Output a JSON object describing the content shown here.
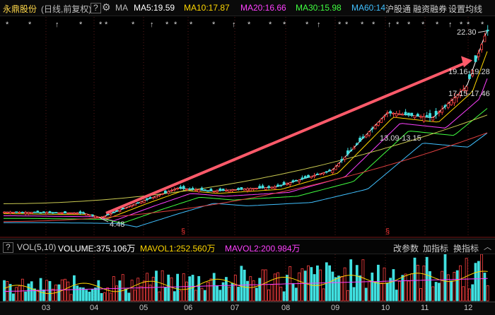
{
  "header": {
    "stock_name": "永鼎股份",
    "period": "(日线,前复权)",
    "help": "?",
    "gear": "gear-icon",
    "ma_label": "MA",
    "ma5": "MA5:19.59",
    "ma10": "MA10:17.87",
    "ma20": "MA20:16.66",
    "ma30": "MA30:15.98",
    "ma60": "MA60:14",
    "hgt": "沪股通",
    "margin": "融资融券",
    "settings": "设置均线",
    "colors": {
      "ma5": "#ffffff",
      "ma10": "#ffd700",
      "ma20": "#ff40ff",
      "ma30": "#40ff40",
      "ma60": "#40c0ff"
    }
  },
  "volume_header": {
    "help": "?",
    "title": "VOL(5,10)",
    "volume": "VOLUME:375.106万",
    "mavol1": "MAVOL1:252.560万",
    "mavol2": "MAVOL2:200.984万",
    "change_params": "改参数",
    "add_indicator": "加指标",
    "switch_indicator": "换指标"
  },
  "annotations": {
    "high": "22.30",
    "low": "4.48",
    "range1": "19.16-19.28",
    "range2": "17.15-17.46",
    "range3": "13.09-13.15",
    "s_marker": "§"
  },
  "chart_data": {
    "type": "candlestick",
    "x_ticks": [
      "03",
      "04",
      "05",
      "06",
      "07",
      "08",
      "09",
      "10",
      "11",
      "12"
    ],
    "price_points": [
      [
        "03",
        5.0
      ],
      [
        "04",
        4.9
      ],
      [
        "04",
        4.48
      ],
      [
        "05",
        6.0
      ],
      [
        "06",
        7.3
      ],
      [
        "07",
        7.0
      ],
      [
        "08",
        7.4
      ],
      [
        "09",
        9.0
      ],
      [
        "10",
        14.5
      ],
      [
        "11",
        14.0
      ],
      [
        "12",
        17.0
      ],
      [
        "12",
        22.3
      ]
    ],
    "high": 22.3,
    "low": 4.48,
    "trend_arrow": {
      "from": [
        "04",
        4.9
      ],
      "to": [
        "12",
        19.5
      ],
      "color": "#ff5a6a"
    }
  }
}
